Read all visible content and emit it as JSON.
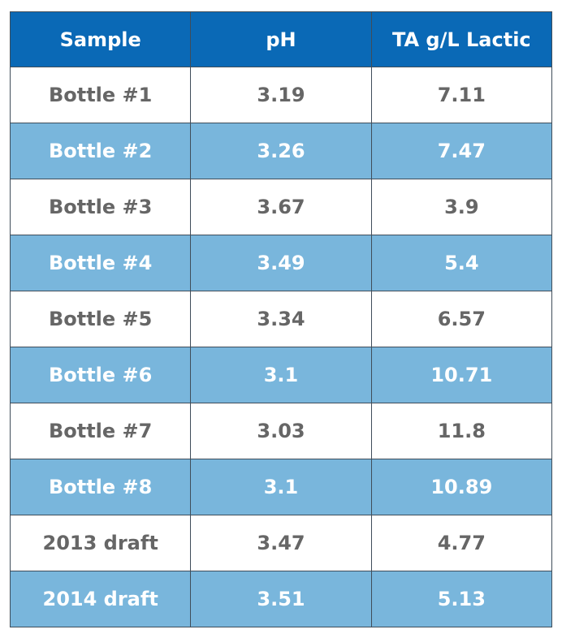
{
  "chart_data": {
    "type": "table",
    "columns": [
      "Sample",
      "pH",
      "TA g/L Lactic"
    ],
    "rows": [
      [
        "Bottle #1",
        "3.19",
        "7.11"
      ],
      [
        "Bottle #2",
        "3.26",
        "7.47"
      ],
      [
        "Bottle #3",
        "3.67",
        "3.9"
      ],
      [
        "Bottle #4",
        "3.49",
        "5.4"
      ],
      [
        "Bottle #5",
        "3.34",
        "6.57"
      ],
      [
        "Bottle #6",
        "3.1",
        "10.71"
      ],
      [
        "Bottle #7",
        "3.03",
        "11.8"
      ],
      [
        "Bottle #8",
        "3.1",
        "10.89"
      ],
      [
        "2013 draft",
        "3.47",
        "4.77"
      ],
      [
        "2014 draft",
        "3.51",
        "5.13"
      ]
    ],
    "colors": {
      "header": "#0a69b6",
      "alt_row": "#79b6dc",
      "text": "#666666"
    }
  }
}
